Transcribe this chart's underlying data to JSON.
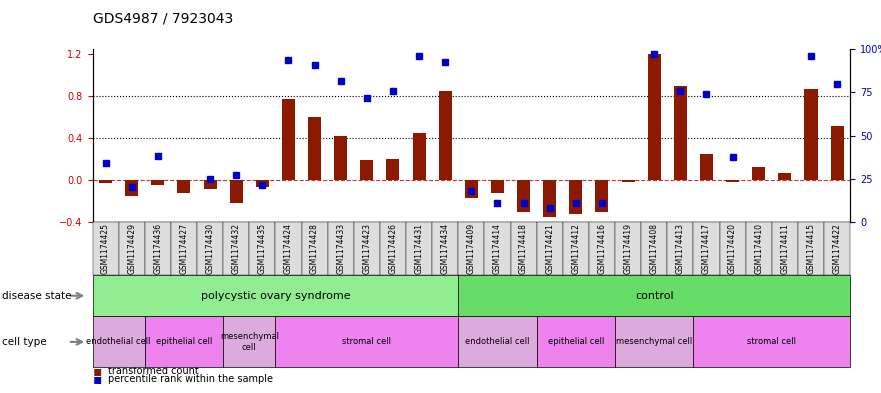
{
  "title": "GDS4987 / 7923043",
  "samples": [
    "GSM1174425",
    "GSM1174429",
    "GSM1174436",
    "GSM1174427",
    "GSM1174430",
    "GSM1174432",
    "GSM1174435",
    "GSM1174424",
    "GSM1174428",
    "GSM1174433",
    "GSM1174423",
    "GSM1174426",
    "GSM1174431",
    "GSM1174434",
    "GSM1174409",
    "GSM1174414",
    "GSM1174418",
    "GSM1174421",
    "GSM1174412",
    "GSM1174416",
    "GSM1174419",
    "GSM1174408",
    "GSM1174413",
    "GSM1174417",
    "GSM1174420",
    "GSM1174410",
    "GSM1174411",
    "GSM1174415",
    "GSM1174422"
  ],
  "red_bars": [
    -0.03,
    -0.15,
    -0.05,
    -0.12,
    -0.08,
    -0.22,
    -0.07,
    0.77,
    0.6,
    0.42,
    0.19,
    0.2,
    0.45,
    0.85,
    -0.17,
    -0.12,
    -0.3,
    -0.35,
    -0.32,
    -0.3,
    -0.02,
    1.2,
    0.9,
    0.25,
    -0.02,
    0.13,
    0.07,
    0.87,
    0.52
  ],
  "blue_squares": [
    0.16,
    -0.07,
    0.23,
    null,
    0.01,
    0.05,
    -0.05,
    1.15,
    1.1,
    0.95,
    0.78,
    0.85,
    1.18,
    1.13,
    -0.1,
    -0.22,
    -0.22,
    -0.27,
    -0.22,
    -0.22,
    null,
    1.2,
    0.85,
    0.82,
    0.22,
    null,
    null,
    1.18,
    0.92
  ],
  "disease_state_groups": [
    {
      "label": "polycystic ovary syndrome",
      "start": 0,
      "end": 14,
      "color": "#90EE90"
    },
    {
      "label": "control",
      "start": 14,
      "end": 29,
      "color": "#66DD66"
    }
  ],
  "cell_type_groups": [
    {
      "label": "endothelial cell",
      "start": 0,
      "end": 2,
      "color": "#DDAADD"
    },
    {
      "label": "epithelial cell",
      "start": 2,
      "end": 5,
      "color": "#EE82EE"
    },
    {
      "label": "mesenchymal\ncell",
      "start": 5,
      "end": 7,
      "color": "#DDAADD"
    },
    {
      "label": "stromal cell",
      "start": 7,
      "end": 14,
      "color": "#EE82EE"
    },
    {
      "label": "endothelial cell",
      "start": 14,
      "end": 17,
      "color": "#DDAADD"
    },
    {
      "label": "epithelial cell",
      "start": 17,
      "end": 20,
      "color": "#EE82EE"
    },
    {
      "label": "mesenchymal cell",
      "start": 20,
      "end": 23,
      "color": "#DDAADD"
    },
    {
      "label": "stromal cell",
      "start": 23,
      "end": 29,
      "color": "#EE82EE"
    }
  ],
  "ylim_left": [
    -0.4,
    1.25
  ],
  "ylim_right": [
    0,
    100
  ],
  "yticks_left": [
    -0.4,
    0.0,
    0.4,
    0.8,
    1.2
  ],
  "yticks_right": [
    0,
    25,
    50,
    75,
    100
  ],
  "bar_color": "#8B1A00",
  "square_color": "#0000CC",
  "zero_line_color": "#CC3333",
  "title_fontsize": 10,
  "tick_label_color_left": "#CC0000",
  "tick_label_color_right": "#0000BB"
}
